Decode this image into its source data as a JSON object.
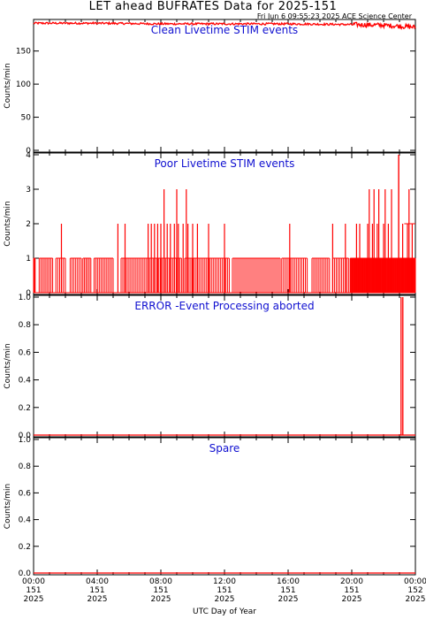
{
  "title": "LET ahead BUFRATES Data for 2025-151",
  "timestamp": "Fri Jun  6 09:55:23 2025 ACE Science Center",
  "chart_data": {
    "type": "line",
    "xlabel": "UTC Day of Year",
    "x_ticks": [
      {
        "time": "00:00",
        "doy": "151",
        "year": "2025"
      },
      {
        "time": "04:00",
        "doy": "151",
        "year": "2025"
      },
      {
        "time": "08:00",
        "doy": "151",
        "year": "2025"
      },
      {
        "time": "12:00",
        "doy": "151",
        "year": "2025"
      },
      {
        "time": "16:00",
        "doy": "151",
        "year": "2025"
      },
      {
        "time": "20:00",
        "doy": "151",
        "year": "2025"
      },
      {
        "time": "00:00",
        "doy": "152",
        "year": "2025"
      }
    ],
    "xlim_hours": [
      0,
      24
    ],
    "series_color": "#ff0000",
    "label_color": "#1010d0",
    "panels": [
      {
        "label": "Clean Livetime STIM events",
        "ylabel": "Counts/min",
        "ylim": [
          0,
          195
        ],
        "yticks": [
          "0",
          "50",
          "100",
          "150"
        ],
        "ytick_values": [
          0,
          50,
          100,
          150
        ],
        "baseline": [
          [
            0,
            192
          ],
          [
            4,
            192
          ],
          [
            8,
            191
          ],
          [
            12,
            191
          ],
          [
            16,
            191
          ],
          [
            20,
            190
          ],
          [
            22,
            189
          ],
          [
            24,
            186
          ]
        ]
      },
      {
        "label": "Poor Livetime STIM events",
        "ylabel": "Counts/min",
        "ylim": [
          0,
          4
        ],
        "yticks": [
          "0",
          "1",
          "2",
          "3",
          "4"
        ],
        "ytick_values": [
          0,
          1,
          2,
          3,
          4
        ],
        "spikes_2": [
          1.75,
          5.3,
          5.75,
          7.2,
          7.4,
          7.6,
          7.8,
          8.0,
          8.2,
          8.4,
          8.6,
          8.85,
          9.1,
          9.4,
          9.7,
          10.0,
          10.3,
          11.0,
          12.0,
          16.1,
          18.8,
          19.6,
          20.3,
          20.5,
          21.0,
          21.3,
          21.6,
          22.0,
          22.3,
          23.2,
          23.5,
          23.8
        ],
        "spikes_3": [
          8.2,
          9.0,
          9.6,
          21.1,
          21.4,
          21.7,
          22.1,
          22.5,
          23.6
        ],
        "spikes_4": [
          22.95
        ]
      },
      {
        "label": "ERROR -Event Processing aborted",
        "ylabel": "Counts/min",
        "ylim": [
          0,
          1
        ],
        "yticks": [
          "0.0",
          "0.2",
          "0.4",
          "0.6",
          "0.8",
          "1.0"
        ],
        "ytick_values": [
          0,
          0.2,
          0.4,
          0.6,
          0.8,
          1.0
        ],
        "spikes": [
          {
            "x": 23.1,
            "y": 1.0
          }
        ]
      },
      {
        "label": "Spare",
        "ylabel": "Counts/min",
        "ylim": [
          0,
          1
        ],
        "yticks": [
          "0.0",
          "0.2",
          "0.4",
          "0.6",
          "0.8",
          "1.0"
        ],
        "ytick_values": [
          0,
          0.2,
          0.4,
          0.6,
          0.8,
          1.0
        ],
        "values_constant": 0
      }
    ]
  }
}
